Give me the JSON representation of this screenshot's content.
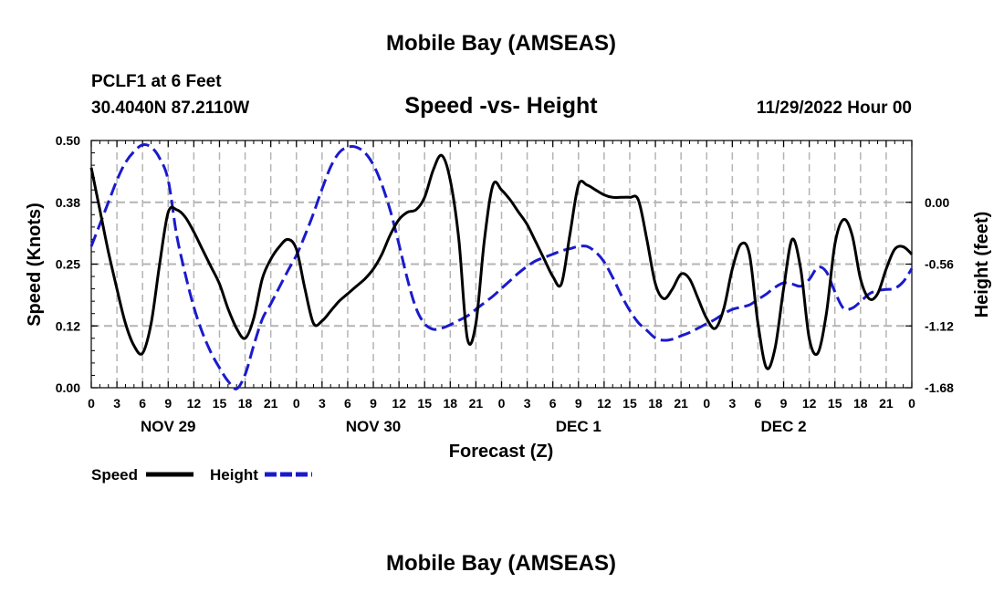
{
  "titles": {
    "main": "Mobile Bay (AMSEAS)",
    "station": "PCLF1 at 6 Feet",
    "coords": "30.4040N  87.2110W",
    "subtitle": "Speed -vs- Height",
    "run": "11/29/2022 Hour 00",
    "footer": "Mobile Bay (AMSEAS)"
  },
  "colors": {
    "speed": "#000000",
    "height": "#1a1acc",
    "grid": "#b4b4b4"
  },
  "chart_data": {
    "type": "line",
    "title": "Speed -vs- Height",
    "xlabel": "Forecast (Z)",
    "ylabel": "Speed (Knots)",
    "y2label": "Height (feet)",
    "xlim": [
      0,
      96
    ],
    "ylim": [
      0,
      0.5
    ],
    "y2lim": [
      -1.68,
      0.56
    ],
    "yticks": [
      "0.50",
      "0.38",
      "0.25",
      "0.12",
      "0.00"
    ],
    "yticks_values": [
      0.5,
      0.375,
      0.25,
      0.125,
      0
    ],
    "y2ticks": [
      "0.00",
      "-0.56",
      "-1.12",
      "-1.68"
    ],
    "y2ticks_values": [
      0,
      -0.56,
      -1.12,
      -1.68
    ],
    "xticks": [
      "0",
      "3",
      "6",
      "9",
      "12",
      "15",
      "18",
      "21",
      "0",
      "3",
      "6",
      "9",
      "12",
      "15",
      "18",
      "21",
      "0",
      "3",
      "6",
      "9",
      "12",
      "15",
      "18",
      "21",
      "0",
      "3",
      "6",
      "9",
      "12",
      "15",
      "18",
      "21",
      "0"
    ],
    "day_labels": [
      {
        "label": "NOV 29",
        "hour": 9
      },
      {
        "label": "NOV 30",
        "hour": 33
      },
      {
        "label": "DEC 1",
        "hour": 57
      },
      {
        "label": "DEC 2",
        "hour": 81
      }
    ],
    "series": [
      {
        "name": "Speed",
        "axis": "left",
        "x": [
          0,
          1,
          2,
          3,
          4,
          5,
          6,
          7,
          8,
          9,
          10,
          11,
          12,
          13,
          14,
          15,
          16,
          17,
          18,
          19,
          20,
          21,
          22,
          23,
          24,
          25,
          26,
          27,
          28,
          29,
          30,
          31,
          32,
          33,
          34,
          35,
          36,
          37,
          38,
          39,
          40,
          41,
          42,
          43,
          44,
          45,
          46,
          47,
          48,
          49,
          50,
          51,
          52,
          53,
          54,
          55,
          56,
          57,
          58,
          59,
          60,
          61,
          62,
          63,
          64,
          65,
          66,
          67,
          68,
          69,
          70,
          71,
          72,
          73,
          74,
          75,
          76,
          77,
          78,
          79,
          80,
          81,
          82,
          83,
          84,
          85,
          86,
          87,
          88,
          89,
          90,
          91,
          92,
          93,
          94,
          95,
          96
        ],
        "values": [
          0.445,
          0.36,
          0.275,
          0.2,
          0.13,
          0.085,
          0.07,
          0.13,
          0.25,
          0.355,
          0.36,
          0.345,
          0.315,
          0.28,
          0.245,
          0.21,
          0.16,
          0.12,
          0.1,
          0.14,
          0.22,
          0.26,
          0.285,
          0.3,
          0.28,
          0.2,
          0.13,
          0.135,
          0.155,
          0.175,
          0.19,
          0.205,
          0.22,
          0.24,
          0.27,
          0.31,
          0.34,
          0.355,
          0.36,
          0.385,
          0.44,
          0.47,
          0.42,
          0.3,
          0.1,
          0.13,
          0.3,
          0.41,
          0.4,
          0.38,
          0.355,
          0.33,
          0.295,
          0.26,
          0.225,
          0.21,
          0.31,
          0.41,
          0.41,
          0.4,
          0.39,
          0.385,
          0.385,
          0.385,
          0.38,
          0.3,
          0.21,
          0.18,
          0.2,
          0.23,
          0.22,
          0.18,
          0.14,
          0.12,
          0.16,
          0.24,
          0.29,
          0.27,
          0.13,
          0.04,
          0.08,
          0.2,
          0.3,
          0.24,
          0.1,
          0.07,
          0.15,
          0.29,
          0.34,
          0.31,
          0.22,
          0.18,
          0.19,
          0.24,
          0.28,
          0.285,
          0.27
        ]
      },
      {
        "name": "Height",
        "axis": "right",
        "x": [
          0,
          1,
          2,
          3,
          4,
          5,
          6,
          7,
          8,
          9,
          10,
          11,
          12,
          13,
          14,
          15,
          16,
          17,
          18,
          19,
          20,
          21,
          22,
          23,
          24,
          25,
          26,
          27,
          28,
          29,
          30,
          31,
          32,
          33,
          34,
          35,
          36,
          37,
          38,
          39,
          40,
          41,
          42,
          43,
          44,
          45,
          46,
          47,
          48,
          49,
          50,
          51,
          52,
          53,
          54,
          55,
          56,
          57,
          58,
          59,
          60,
          61,
          62,
          63,
          64,
          65,
          66,
          67,
          68,
          69,
          70,
          71,
          72,
          73,
          74,
          75,
          76,
          77,
          78,
          79,
          80,
          81,
          82,
          83,
          84,
          85,
          86,
          87,
          88,
          89,
          90,
          91,
          92,
          93,
          94,
          95,
          96
        ],
        "values": [
          -0.4,
          -0.2,
          0.0,
          0.2,
          0.36,
          0.46,
          0.52,
          0.5,
          0.4,
          0.2,
          -0.3,
          -0.65,
          -0.95,
          -1.18,
          -1.36,
          -1.5,
          -1.62,
          -1.69,
          -1.56,
          -1.3,
          -1.06,
          -0.92,
          -0.77,
          -0.62,
          -0.48,
          -0.3,
          -0.1,
          0.12,
          0.32,
          0.45,
          0.5,
          0.5,
          0.45,
          0.34,
          0.16,
          -0.08,
          -0.38,
          -0.7,
          -0.96,
          -1.1,
          -1.15,
          -1.14,
          -1.11,
          -1.07,
          -1.03,
          -0.97,
          -0.91,
          -0.85,
          -0.78,
          -0.71,
          -0.64,
          -0.58,
          -0.53,
          -0.5,
          -0.47,
          -0.44,
          -0.42,
          -0.4,
          -0.4,
          -0.45,
          -0.54,
          -0.68,
          -0.84,
          -0.98,
          -1.09,
          -1.16,
          -1.23,
          -1.25,
          -1.24,
          -1.21,
          -1.18,
          -1.14,
          -1.1,
          -1.06,
          -1.01,
          -0.97,
          -0.95,
          -0.93,
          -0.88,
          -0.83,
          -0.77,
          -0.73,
          -0.74,
          -0.76,
          -0.7,
          -0.59,
          -0.63,
          -0.81,
          -0.96,
          -0.96,
          -0.9,
          -0.83,
          -0.8,
          -0.79,
          -0.78,
          -0.72,
          -0.6
        ]
      }
    ],
    "legend": [
      {
        "label": "Speed",
        "style": "solid"
      },
      {
        "label": "Height",
        "style": "dashed"
      }
    ]
  }
}
